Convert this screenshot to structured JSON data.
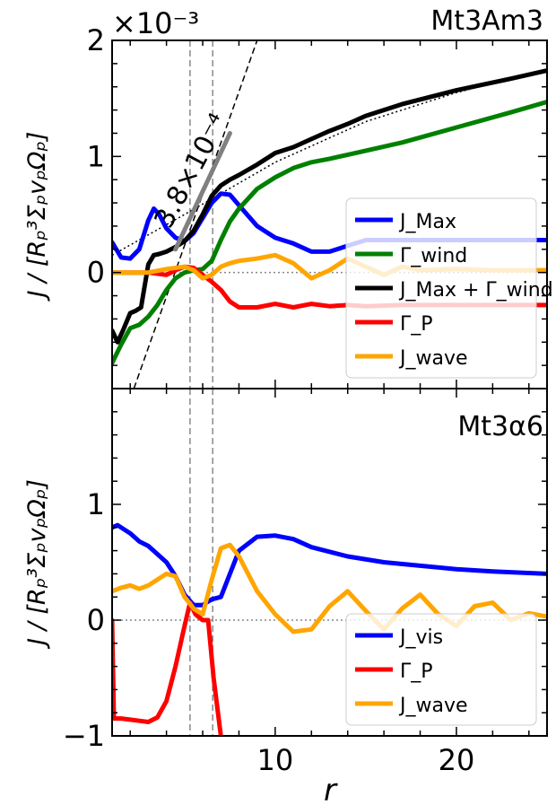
{
  "figure": {
    "x_axis_label": "r",
    "x_ticks": [
      "10",
      "20"
    ]
  },
  "chart_data": [
    {
      "type": "line",
      "panel": "top",
      "title": "Mt3Am3",
      "multiplier": "×10⁻³",
      "ylabel": "J / [Rₚ³ΣₚvₚΩₚ]",
      "ylim": [
        -1,
        2
      ],
      "xlim": [
        1,
        25
      ],
      "y_ticks": [
        "2",
        "1",
        "0"
      ],
      "hline": 0,
      "vlines": [
        5.3,
        6.55
      ],
      "annotation": "3.8×10⁻⁴",
      "legend_placement": "lower-right",
      "series": [
        {
          "name": "J_Max",
          "color": "#0000ff",
          "x": [
            1,
            1.5,
            2,
            2.5,
            3,
            3.3,
            3.6,
            4,
            4.5,
            5,
            5.5,
            6,
            6.5,
            7,
            7.5,
            8,
            9,
            10,
            11,
            12,
            13,
            14,
            15,
            17,
            20,
            23,
            25
          ],
          "y": [
            0.26,
            0.13,
            0.12,
            0.2,
            0.45,
            0.55,
            0.5,
            0.38,
            0.3,
            0.27,
            0.34,
            0.47,
            0.6,
            0.68,
            0.67,
            0.58,
            0.4,
            0.3,
            0.25,
            0.18,
            0.18,
            0.23,
            0.28,
            0.28,
            0.28,
            0.28,
            0.28
          ]
        },
        {
          "name": "Γ_wind",
          "color": "#008000",
          "x": [
            1,
            1.5,
            2,
            2.5,
            3,
            3.5,
            4,
            4.5,
            5,
            5.5,
            6,
            6.5,
            7,
            7.5,
            8,
            9,
            10,
            11,
            12,
            13,
            15,
            17,
            20,
            23,
            25
          ],
          "y": [
            -0.78,
            -0.62,
            -0.48,
            -0.45,
            -0.38,
            -0.28,
            -0.15,
            -0.05,
            0,
            0.02,
            0.03,
            0.1,
            0.28,
            0.44,
            0.55,
            0.72,
            0.82,
            0.9,
            0.95,
            0.98,
            1.05,
            1.12,
            1.25,
            1.38,
            1.47
          ]
        },
        {
          "name": "J_Max + Γ_wind",
          "color": "#000000",
          "x": [
            1,
            1.3,
            1.6,
            2,
            2.3,
            2.6,
            3,
            3.3,
            3.6,
            4,
            4.5,
            5,
            5.5,
            6,
            6.5,
            7,
            7.5,
            8,
            9,
            10,
            11,
            12,
            13,
            14,
            15,
            17,
            20,
            23,
            25
          ],
          "y": [
            -0.5,
            -0.6,
            -0.5,
            -0.35,
            -0.33,
            -0.3,
            0.07,
            0.15,
            0.16,
            0.18,
            0.22,
            0.27,
            0.36,
            0.5,
            0.66,
            0.75,
            0.8,
            0.84,
            0.93,
            1.03,
            1.08,
            1.15,
            1.22,
            1.28,
            1.35,
            1.45,
            1.57,
            1.67,
            1.74
          ]
        },
        {
          "name": "Γ_P",
          "color": "#ff0000",
          "x": [
            1,
            2,
            3,
            4,
            4.5,
            5,
            5.5,
            6,
            6.5,
            7,
            7.5,
            8,
            9,
            10,
            11,
            12,
            13,
            14,
            15,
            17,
            20,
            23,
            25
          ],
          "y": [
            0,
            0,
            0,
            -0.02,
            0.02,
            0.05,
            0.04,
            -0.02,
            -0.08,
            -0.15,
            -0.25,
            -0.3,
            -0.3,
            -0.27,
            -0.3,
            -0.27,
            -0.29,
            -0.28,
            -0.29,
            -0.28,
            -0.28,
            -0.28,
            -0.28
          ]
        },
        {
          "name": "J_wave",
          "color": "#ffa500",
          "x": [
            1,
            2,
            3,
            4,
            5,
            5.5,
            6,
            6.5,
            7,
            7.5,
            8,
            9,
            10,
            11,
            12,
            13,
            14,
            15,
            16,
            17,
            18,
            20,
            22,
            24,
            25
          ],
          "y": [
            0,
            0,
            0,
            0.03,
            0.05,
            0.02,
            -0.05,
            -0.02,
            0.05,
            0.08,
            0.1,
            0.12,
            0.15,
            0.08,
            -0.05,
            0.02,
            0.12,
            0.05,
            -0.02,
            0.05,
            0.02,
            0.03,
            0.02,
            0.02,
            0.02
          ]
        }
      ],
      "dotted_fit": {
        "x": [
          1,
          5,
          10,
          15,
          20,
          25
        ],
        "y": [
          0.15,
          0.5,
          0.95,
          1.3,
          1.55,
          1.75
        ]
      },
      "dashed_slope": {
        "x": [
          2.2,
          9
        ],
        "y": [
          -1,
          2
        ]
      },
      "gray_slope": {
        "x": [
          4.5,
          7.5
        ],
        "y": [
          0.2,
          1.2
        ]
      }
    },
    {
      "type": "line",
      "panel": "bottom",
      "title": "Mt3α6",
      "ylabel": "J / [Rₚ³ΣₚvₚΩₚ]",
      "ylim": [
        -1,
        2
      ],
      "xlim": [
        1,
        25
      ],
      "y_ticks": [
        "1",
        "0",
        "−1"
      ],
      "hline": 0,
      "vlines": [
        5.3,
        6.55
      ],
      "legend_placement": "lower-right",
      "series": [
        {
          "name": "J_vis",
          "color": "#0000ff",
          "x": [
            1,
            1.3,
            2,
            2.5,
            3,
            4,
            4.5,
            5,
            5.5,
            6,
            6.5,
            7,
            7.5,
            8,
            9,
            10,
            11,
            12,
            14,
            16,
            18,
            20,
            22,
            25
          ],
          "y": [
            0.8,
            0.82,
            0.75,
            0.68,
            0.64,
            0.5,
            0.38,
            0.22,
            0.13,
            0.13,
            0.18,
            0.2,
            0.4,
            0.6,
            0.72,
            0.73,
            0.7,
            0.63,
            0.55,
            0.5,
            0.47,
            0.44,
            0.42,
            0.4
          ]
        },
        {
          "name": "Γ_P",
          "color": "#ff0000",
          "x": [
            1,
            1.1,
            1.5,
            2,
            2.5,
            3,
            3.5,
            4,
            4.5,
            5,
            5.3,
            5.6,
            6,
            6.3,
            6.6,
            7
          ],
          "y": [
            0,
            -0.85,
            -0.85,
            -0.86,
            -0.87,
            -0.88,
            -0.84,
            -0.7,
            -0.4,
            -0.05,
            0.15,
            0.05,
            0.0,
            0.0,
            -0.5,
            -1.0
          ]
        },
        {
          "name": "J_wave",
          "color": "#ffa500",
          "x": [
            1,
            1.5,
            2,
            2.5,
            3,
            3.5,
            4,
            4.5,
            5,
            5.5,
            6,
            6.5,
            7,
            7.5,
            8,
            9,
            10,
            11,
            12,
            13,
            14,
            15,
            16,
            17,
            18,
            19,
            20,
            21,
            22,
            23,
            24,
            25
          ],
          "y": [
            0.25,
            0.28,
            0.3,
            0.27,
            0.3,
            0.35,
            0.4,
            0.38,
            0.2,
            0.1,
            0.05,
            0.35,
            0.62,
            0.65,
            0.55,
            0.25,
            0.05,
            -0.1,
            -0.08,
            0.12,
            0.25,
            0.08,
            -0.08,
            0.1,
            0.22,
            0.05,
            -0.05,
            0.12,
            0.15,
            0.0,
            0.06,
            0.03
          ]
        }
      ]
    }
  ]
}
